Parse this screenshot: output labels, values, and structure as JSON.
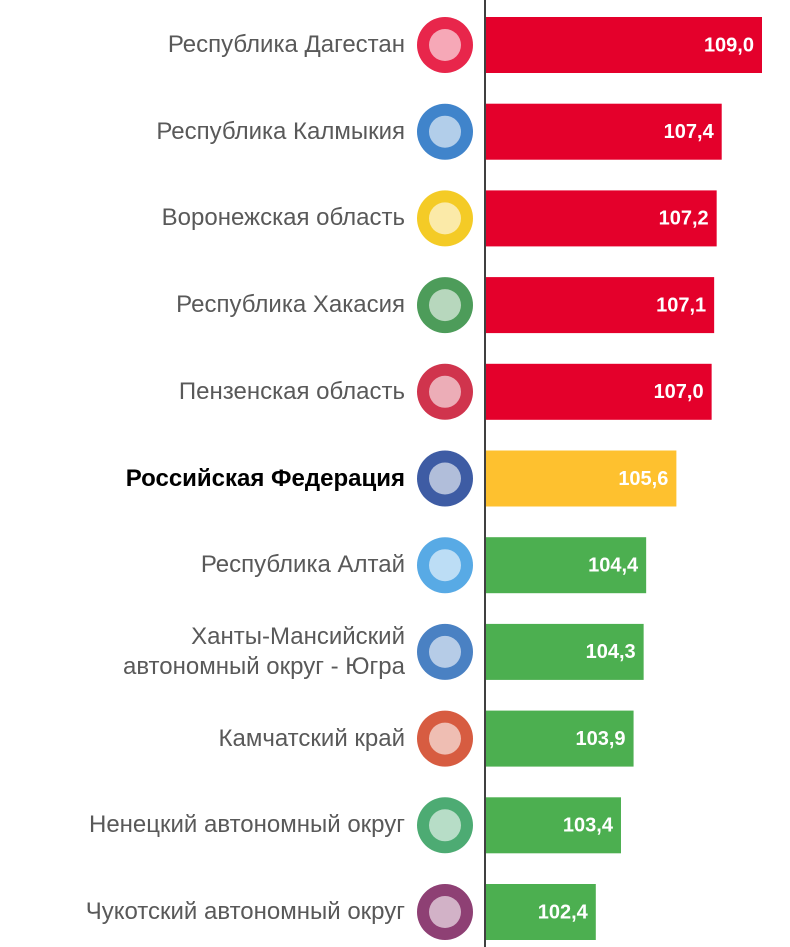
{
  "chart_data": {
    "type": "hbar",
    "categories": [
      "Республика Дагестан",
      "Республика Калмыкия",
      "Воронежская область",
      "Республика Хакасия",
      "Пензенская область",
      "Российская Федерация",
      "Республика Алтай",
      "Ханты-Мансийский\nавтономный округ - Югра",
      "Камчатский край",
      "Ненецкий автономный округ",
      "Чукотский автономный округ"
    ],
    "values": [
      109.0,
      107.4,
      107.2,
      107.1,
      107.0,
      105.6,
      104.4,
      104.3,
      103.9,
      103.4,
      102.4
    ],
    "value_labels": [
      "109,0",
      "107,4",
      "107,2",
      "107,1",
      "107,0",
      "105,6",
      "104,4",
      "104,3",
      "103,9",
      "103,4",
      "102,4"
    ],
    "colors": [
      "#e4002b",
      "#e4002b",
      "#e4002b",
      "#e4002b",
      "#e4002b",
      "#fec12f",
      "#4caf50",
      "#4caf50",
      "#4caf50",
      "#4caf50",
      "#4caf50"
    ],
    "highlight": 5,
    "xlim": [
      98,
      109
    ]
  }
}
